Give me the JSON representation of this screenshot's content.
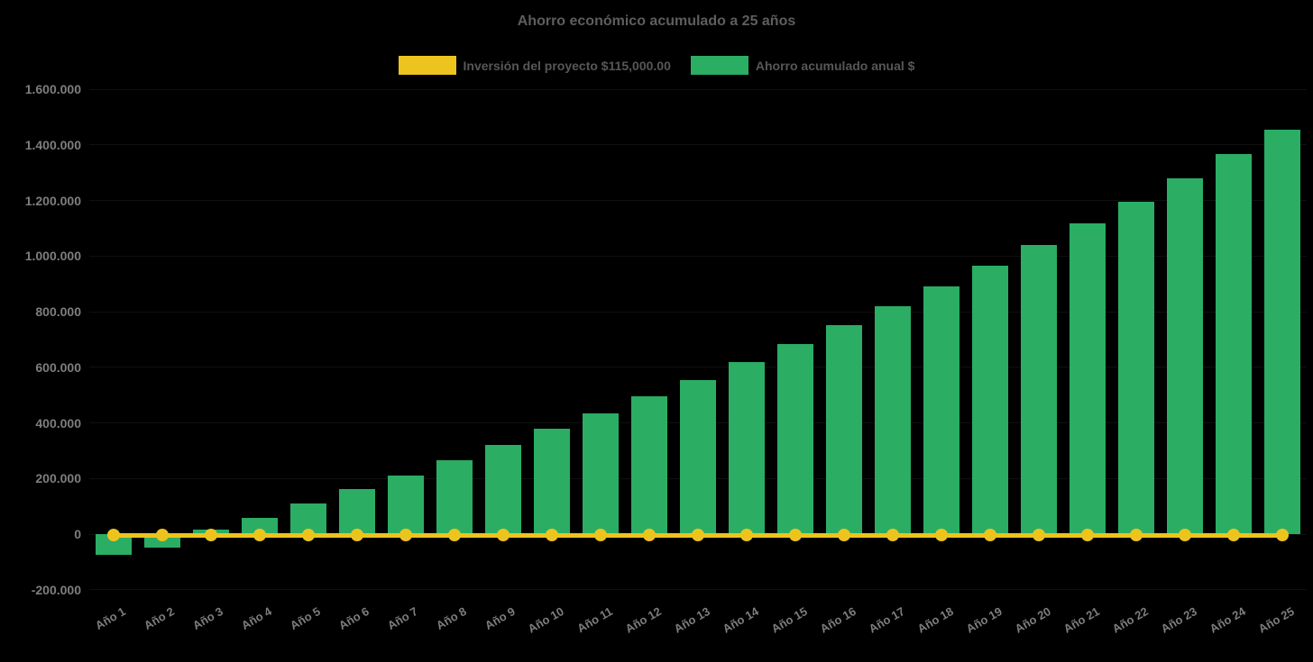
{
  "chart_data": {
    "type": "bar",
    "subtype": "column-with-constant-line",
    "title": "Ahorro económico acumulado a 25 años",
    "categories": [
      "Año 1",
      "Año 2",
      "Año 3",
      "Año 4",
      "Año 5",
      "Año 6",
      "Año 7",
      "Año 8",
      "Año 9",
      "Año 10",
      "Año 11",
      "Año 12",
      "Año 13",
      "Año 14",
      "Año 15",
      "Año 16",
      "Año 17",
      "Año 18",
      "Año 19",
      "Año 20",
      "Año 21",
      "Año 22",
      "Año 23",
      "Año 24",
      "Año 25"
    ],
    "bar_series": {
      "name": "Ahorro acumulado anual $",
      "color": "#2BAD64",
      "values": [
        -75000,
        -48000,
        15000,
        58000,
        109000,
        162000,
        210000,
        265000,
        322000,
        379000,
        434000,
        495000,
        555000,
        618000,
        683000,
        752000,
        819000,
        890000,
        966000,
        1039000,
        1117000,
        1196000,
        1279000,
        1366000,
        1456000
      ]
    },
    "line_series": {
      "name": "Inversión del proyecto $115,000.00",
      "color": "#EDC41E",
      "marker": "circle",
      "constant_value": 0
    },
    "yaxis": {
      "min": -200000,
      "max": 1600000,
      "tick_interval": 200000,
      "tick_values": [
        -200000,
        0,
        200000,
        400000,
        600000,
        800000,
        1000000,
        1200000,
        1400000,
        1600000
      ],
      "tick_labels": [
        "-200.000",
        "0",
        "200.000",
        "400.000",
        "600.000",
        "800.000",
        "1.000.000",
        "1.200.000",
        "1.400.000",
        "1.600.000"
      ]
    },
    "xaxis": {
      "label_rotation": -30
    },
    "legend_position": "top",
    "grid": "off",
    "colors": {
      "background": "#000000",
      "title_text": "#5E5E5E",
      "legend_text": "#575757",
      "axis_label_text": "#7E7E7E"
    }
  }
}
